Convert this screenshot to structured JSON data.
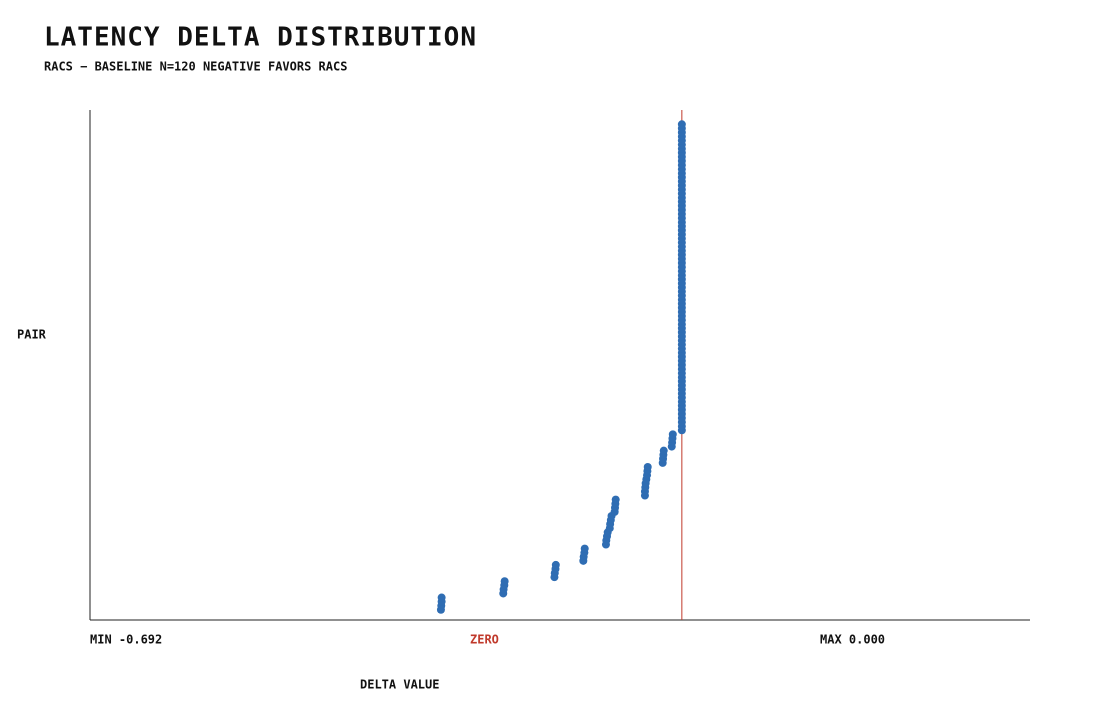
{
  "chart_data": {
    "type": "scatter",
    "title": "LATENCY DELTA DISTRIBUTION",
    "subtitle": "RACS − BASELINE   N=120   NEGATIVE FAVORS RACS",
    "x_label": "DELTA VALUE",
    "y_label": "PAIR",
    "min_label": "MIN -0.692",
    "zero_label": "ZERO",
    "max_label": "MAX 0.000",
    "zero_line": 0,
    "zero_color": "#c0392b",
    "color": "#2f6db3",
    "xlim": [
      -1.7,
      1.0
    ],
    "ylim": [
      -1.5,
      123.5
    ],
    "series": [
      {
        "color": "#2f6db3",
        "x": [
          -0.692,
          -0.691,
          -0.69,
          -0.69,
          -0.513,
          -0.512,
          -0.51,
          -0.509,
          -0.366,
          -0.365,
          -0.363,
          -0.362,
          -0.283,
          -0.282,
          -0.28,
          -0.279,
          -0.218,
          -0.217,
          -0.215,
          -0.213,
          -0.207,
          -0.206,
          -0.204,
          -0.202,
          -0.193,
          -0.192,
          -0.191,
          -0.19,
          -0.106,
          -0.106,
          -0.105,
          -0.104,
          -0.102,
          -0.1,
          -0.099,
          -0.098,
          -0.055,
          -0.054,
          -0.053,
          -0.052,
          -0.029,
          -0.028,
          -0.027,
          -0.026,
          0,
          0,
          0,
          0,
          0,
          0,
          0,
          0,
          0,
          0,
          0,
          0,
          0,
          0,
          0,
          0,
          0,
          0,
          0,
          0,
          0,
          0,
          0,
          0,
          0,
          0,
          0,
          0,
          0,
          0,
          0,
          0,
          0,
          0,
          0,
          0,
          0,
          0,
          0,
          0,
          0,
          0,
          0,
          0,
          0,
          0,
          0,
          0,
          0,
          0,
          0,
          0,
          0,
          0,
          0,
          0,
          0,
          0,
          0,
          0,
          0,
          0,
          0,
          0,
          0,
          0,
          0,
          0,
          0,
          0,
          0,
          0,
          0,
          0,
          0,
          0
        ],
        "values": [
          1,
          2,
          3,
          4,
          5,
          6,
          7,
          8,
          9,
          10,
          11,
          12,
          13,
          14,
          15,
          16,
          17,
          18,
          19,
          20,
          21,
          22,
          23,
          24,
          25,
          26,
          27,
          28,
          29,
          30,
          31,
          32,
          33,
          34,
          35,
          36,
          37,
          38,
          39,
          40,
          41,
          42,
          43,
          44,
          45,
          46,
          47,
          48,
          49,
          50,
          51,
          52,
          53,
          54,
          55,
          56,
          57,
          58,
          59,
          60,
          61,
          62,
          63,
          64,
          65,
          66,
          67,
          68,
          69,
          70,
          71,
          72,
          73,
          74,
          75,
          76,
          77,
          78,
          79,
          80,
          81,
          82,
          83,
          84,
          85,
          86,
          87,
          88,
          89,
          90,
          91,
          92,
          93,
          94,
          95,
          96,
          97,
          98,
          99,
          100,
          101,
          102,
          103,
          104,
          105,
          106,
          107,
          108,
          109,
          110,
          111,
          112,
          113,
          114,
          115,
          116,
          117,
          118,
          119,
          120
        ]
      }
    ]
  }
}
